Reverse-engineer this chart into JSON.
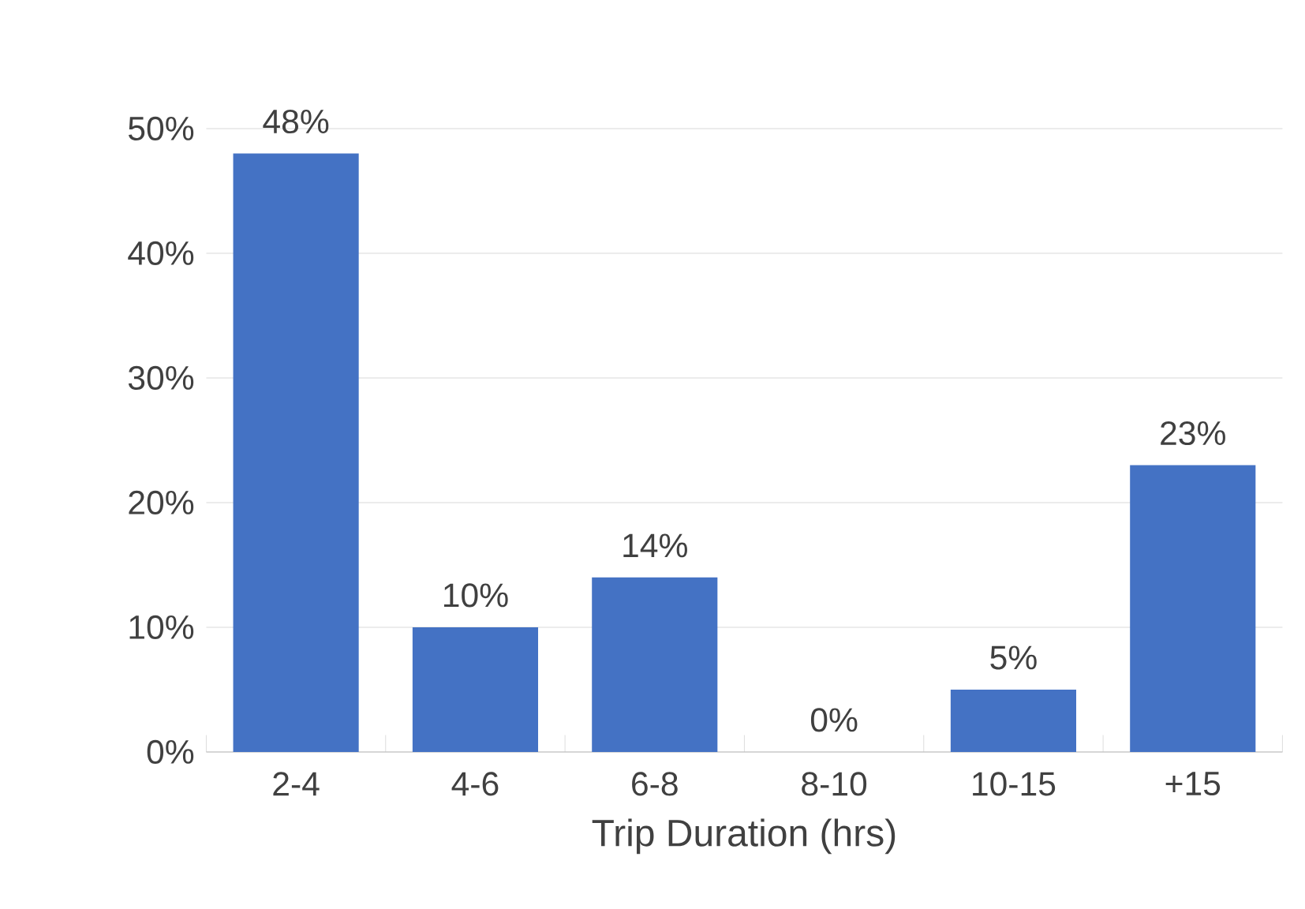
{
  "chart_data": {
    "type": "bar",
    "xlabel": "Trip Duration (hrs)",
    "categories": [
      "2-4",
      "4-6",
      "6-8",
      "8-10",
      "10-15",
      "+15"
    ],
    "values": [
      48,
      10,
      14,
      0,
      5,
      23
    ],
    "value_labels": [
      "48%",
      "10%",
      "14%",
      "0%",
      "5%",
      "23%"
    ],
    "color": "#4472c4",
    "ylim": [
      0,
      50
    ],
    "yticks": [
      {
        "value": 0,
        "label": "0%"
      },
      {
        "value": 10,
        "label": "10%"
      },
      {
        "value": 20,
        "label": "20%"
      },
      {
        "value": 30,
        "label": "30%"
      },
      {
        "value": 40,
        "label": "40%"
      },
      {
        "value": 50,
        "label": "50%"
      }
    ],
    "grid": "y"
  }
}
